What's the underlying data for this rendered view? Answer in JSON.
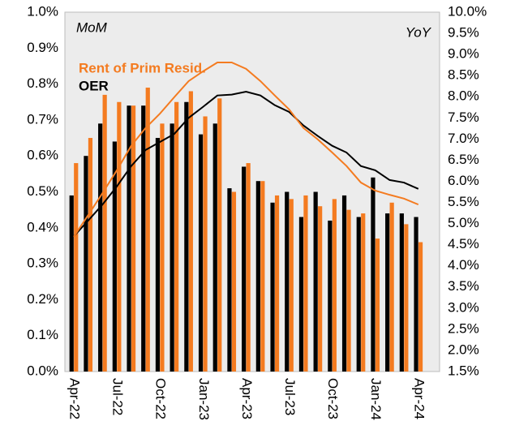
{
  "chart_data": {
    "type": "bar-line",
    "annotations": [
      "MoM",
      "YoY"
    ],
    "categories": [
      "Apr-22",
      null,
      null,
      "Jul-22",
      null,
      null,
      "Oct-22",
      null,
      null,
      "Jan-23",
      null,
      null,
      "Apr-23",
      null,
      null,
      "Jul-23",
      null,
      null,
      "Oct-23",
      null,
      null,
      "Jan-24",
      null,
      null,
      "Apr-24"
    ],
    "series": [
      {
        "name": "OER",
        "color": "#000000",
        "type": "bar",
        "values": [
          0.49,
          0.6,
          0.69,
          0.64,
          0.74,
          0.74,
          0.65,
          0.69,
          0.75,
          0.66,
          0.69,
          0.51,
          0.57,
          0.53,
          0.47,
          0.5,
          0.43,
          0.5,
          0.42,
          0.49,
          0.43,
          0.54,
          0.44,
          0.44,
          0.43
        ]
      },
      {
        "name": "Rent of Prim Resid.",
        "color": "#f47b20",
        "type": "bar",
        "values": [
          0.58,
          0.65,
          0.77,
          0.75,
          0.74,
          0.79,
          0.69,
          0.75,
          0.78,
          0.71,
          0.76,
          0.5,
          0.58,
          0.53,
          0.49,
          0.48,
          0.49,
          0.46,
          0.48,
          0.45,
          0.44,
          0.37,
          0.47,
          0.41,
          0.36
        ]
      },
      {
        "name": "OER",
        "color": "#000000",
        "type": "line",
        "axis": "y2",
        "values": [
          4.7,
          5.07,
          5.45,
          5.88,
          6.36,
          6.74,
          6.93,
          7.12,
          7.5,
          7.76,
          8.03,
          8.05,
          8.12,
          8.03,
          7.8,
          7.64,
          7.32,
          7.07,
          6.84,
          6.68,
          6.36,
          6.26,
          6.03,
          5.97,
          5.82
        ]
      },
      {
        "name": "Rent of Prim Resid.",
        "color": "#f47b20",
        "type": "line",
        "axis": "y2",
        "values": [
          4.69,
          5.2,
          5.72,
          6.26,
          6.84,
          7.26,
          7.6,
          7.99,
          8.37,
          8.6,
          8.81,
          8.81,
          8.66,
          8.37,
          8.03,
          7.7,
          7.26,
          6.99,
          6.68,
          6.36,
          5.97,
          5.78,
          5.68,
          5.59,
          5.45
        ]
      }
    ],
    "ylim": [
      0,
      1.0
    ],
    "yticks": [
      {
        "value": 0,
        "label": "0.0%"
      },
      {
        "value": 0.1,
        "label": "0.1%"
      },
      {
        "value": 0.2,
        "label": "0.2%"
      },
      {
        "value": 0.3,
        "label": "0.3%"
      },
      {
        "value": 0.4,
        "label": "0.4%"
      },
      {
        "value": 0.5,
        "label": "0.5%"
      },
      {
        "value": 0.6,
        "label": "0.6%"
      },
      {
        "value": 0.7,
        "label": "0.7%"
      },
      {
        "value": 0.8,
        "label": "0.8%"
      },
      {
        "value": 0.9,
        "label": "0.9%"
      },
      {
        "value": 1.0,
        "label": "1.0%"
      }
    ],
    "y2lim": [
      1.5,
      10.0
    ],
    "y2ticks": [
      {
        "value": 1.5,
        "label": "1.5%"
      },
      {
        "value": 2.0,
        "label": "2.0%"
      },
      {
        "value": 2.5,
        "label": "2.5%"
      },
      {
        "value": 3.0,
        "label": "3.0%"
      },
      {
        "value": 3.5,
        "label": "3.5%"
      },
      {
        "value": 4.0,
        "label": "4.0%"
      },
      {
        "value": 4.5,
        "label": "4.5%"
      },
      {
        "value": 5.0,
        "label": "5.0%"
      },
      {
        "value": 5.5,
        "label": "5.5%"
      },
      {
        "value": 6.0,
        "label": "6.0%"
      },
      {
        "value": 6.5,
        "label": "6.5%"
      },
      {
        "value": 7.0,
        "label": "7.0%"
      },
      {
        "value": 7.5,
        "label": "7.5%"
      },
      {
        "value": 8.0,
        "label": "8.0%"
      },
      {
        "value": 8.5,
        "label": "8.5%"
      },
      {
        "value": 9.0,
        "label": "9.0%"
      },
      {
        "value": 9.5,
        "label": "9.5%"
      },
      {
        "value": 10.0,
        "label": "10.0%"
      }
    ],
    "grid": false
  }
}
